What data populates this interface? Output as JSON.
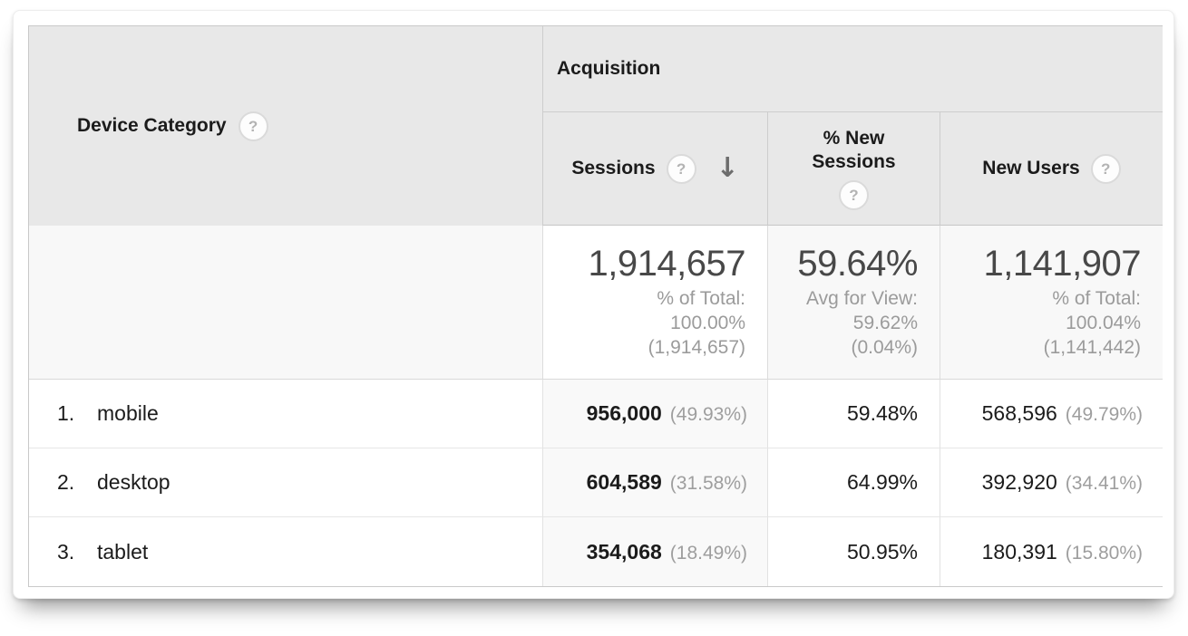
{
  "table": {
    "dimension_header": {
      "label": "Device Category"
    },
    "group_header": {
      "label": "Acquisition"
    },
    "metric_headers": {
      "sessions": {
        "label": "Sessions",
        "sorted": "descending"
      },
      "pct_new_sessions": {
        "label": "% New Sessions"
      },
      "new_users": {
        "label": "New Users"
      }
    },
    "icons": {
      "help": "?",
      "sort_desc": "↓"
    },
    "summary_row": {
      "sessions": {
        "value": "1,914,657",
        "note1": "% of Total:",
        "note2": "100.00%",
        "note3": "(1,914,657)"
      },
      "pct_new_sessions": {
        "value": "59.64%",
        "note1": "Avg for View:",
        "note2": "59.62%",
        "note3": "(0.04%)"
      },
      "new_users": {
        "value": "1,141,907",
        "note1": "% of Total:",
        "note2": "100.04%",
        "note3": "(1,141,442)"
      }
    },
    "rows": [
      {
        "index": "1.",
        "device": "mobile",
        "sessions": "956,000",
        "sessions_share": "(49.93%)",
        "pct_new_sessions": "59.48%",
        "new_users": "568,596",
        "new_users_share": "(49.79%)"
      },
      {
        "index": "2.",
        "device": "desktop",
        "sessions": "604,589",
        "sessions_share": "(31.58%)",
        "pct_new_sessions": "64.99%",
        "new_users": "392,920",
        "new_users_share": "(34.41%)"
      },
      {
        "index": "3.",
        "device": "tablet",
        "sessions": "354,068",
        "sessions_share": "(18.49%)",
        "pct_new_sessions": "50.95%",
        "new_users": "180,391",
        "new_users_share": "(15.80%)"
      }
    ],
    "colors": {
      "header_bg": "#e8e8e8",
      "sorted_column_body_bg": "#f9f9f9",
      "summary_muted_bg": "#f8f8f8",
      "summary_value_text": "#484848",
      "muted_text": "#9b9b9b"
    }
  }
}
